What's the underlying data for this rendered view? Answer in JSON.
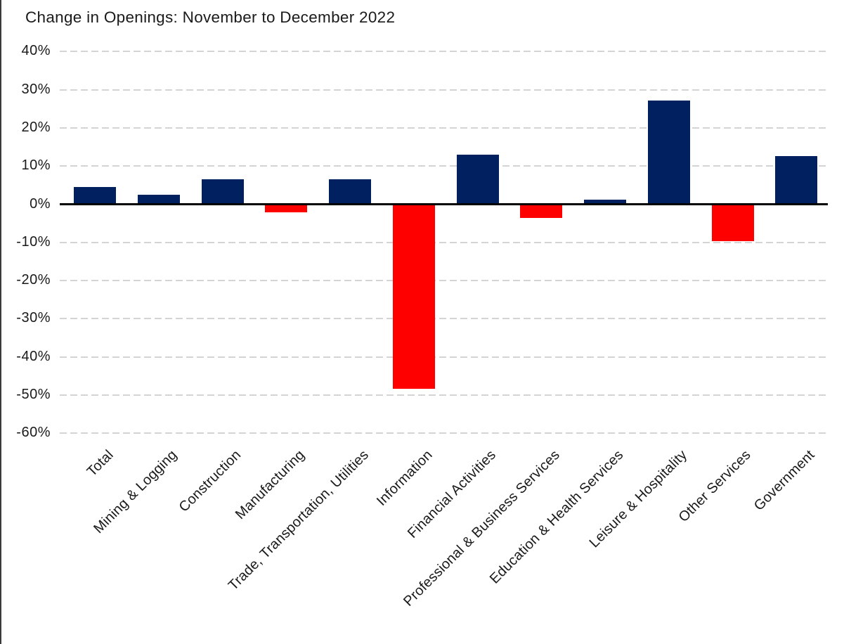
{
  "title": "Change in Openings: November to December 2022",
  "colors": {
    "positive_bar": "#002060",
    "negative_bar": "#ff0000",
    "gridline": "#d4d4d4",
    "zero_axis": "#000000",
    "text": "#1a1a1a"
  },
  "chart_data": {
    "type": "bar",
    "title": "Change in Openings: November to December 2022",
    "categories": [
      "Total",
      "Mining & Logging",
      "Construction",
      "Manufacturing",
      "Trade, Transportation, Utilities",
      "Information",
      "Financial Activities",
      "Professional & Business Services",
      "Education & Health Services",
      "Leisure & Hospitality",
      "Other Services",
      "Government"
    ],
    "values": [
      4.5,
      2.4,
      6.5,
      -2.1,
      6.6,
      -48.3,
      12.9,
      -3.5,
      1.2,
      27.1,
      -9.7,
      12.6
    ],
    "value_unit": "percent",
    "xlabel": "",
    "ylabel": "",
    "ylim": [
      -60,
      40
    ],
    "ytick_step": 10,
    "ytick_labels": [
      "40%",
      "30%",
      "20%",
      "10%",
      "0%",
      "-10%",
      "-20%",
      "-30%",
      "-40%",
      "-50%",
      "-60%"
    ],
    "grid": "horizontal-dashed",
    "legend_position": "none",
    "bar_color_rule": "positive=navy, negative=red",
    "x_labels_rotation_deg": 45
  }
}
